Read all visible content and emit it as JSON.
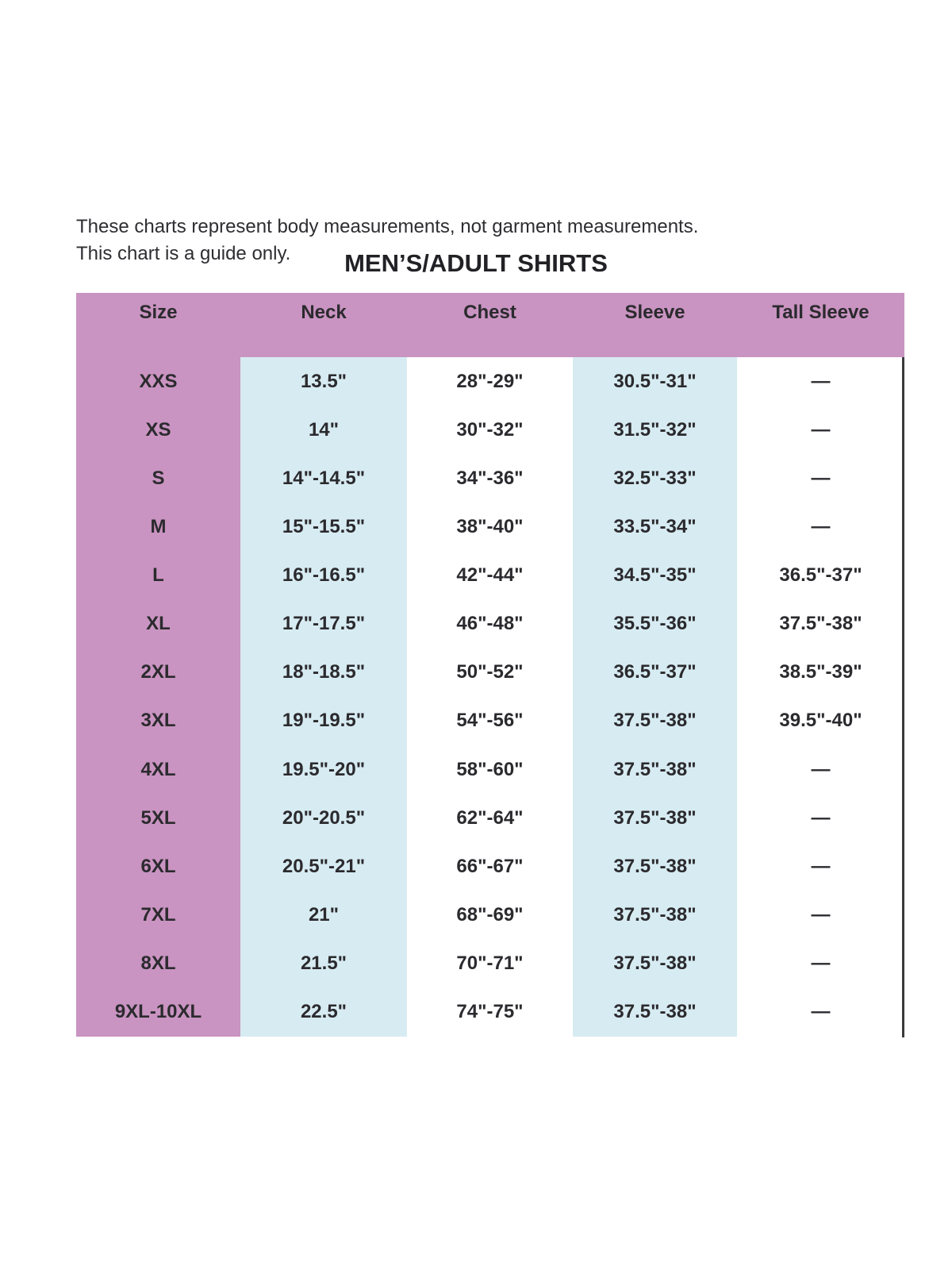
{
  "note": {
    "line1": "These charts represent body measurements, not garment measurements.",
    "line2": "This chart is a guide only."
  },
  "title": "MEN’S/ADULT SHIRTS",
  "chart_data": {
    "type": "table",
    "title": "MEN’S/ADULT SHIRTS",
    "columns": [
      "Size",
      "Neck",
      "Chest",
      "Sleeve",
      "Tall Sleeve"
    ],
    "rows": [
      [
        "XXS",
        "13.5\"",
        "28\"-29\"",
        "30.5\"-31\"",
        "—"
      ],
      [
        "XS",
        "14\"",
        "30\"-32\"",
        "31.5\"-32\"",
        "—"
      ],
      [
        "S",
        "14\"-14.5\"",
        "34\"-36\"",
        "32.5\"-33\"",
        "—"
      ],
      [
        "M",
        "15\"-15.5\"",
        "38\"-40\"",
        "33.5\"-34\"",
        "—"
      ],
      [
        "L",
        "16\"-16.5\"",
        "42\"-44\"",
        "34.5\"-35\"",
        "36.5\"-37\""
      ],
      [
        "XL",
        "17\"-17.5\"",
        "46\"-48\"",
        "35.5\"-36\"",
        "37.5\"-38\""
      ],
      [
        "2XL",
        "18\"-18.5\"",
        "50\"-52\"",
        "36.5\"-37\"",
        "38.5\"-39\""
      ],
      [
        "3XL",
        "19\"-19.5\"",
        "54\"-56\"",
        "37.5\"-38\"",
        "39.5\"-40\""
      ],
      [
        "4XL",
        "19.5\"-20\"",
        "58\"-60\"",
        "37.5\"-38\"",
        "—"
      ],
      [
        "5XL",
        "20\"-20.5\"",
        "62\"-64\"",
        "37.5\"-38\"",
        "—"
      ],
      [
        "6XL",
        "20.5\"-21\"",
        "66\"-67\"",
        "37.5\"-38\"",
        "—"
      ],
      [
        "7XL",
        "21\"",
        "68\"-69\"",
        "37.5\"-38\"",
        "—"
      ],
      [
        "8XL",
        "21.5\"",
        "70\"-71\"",
        "37.5\"-38\"",
        "—"
      ],
      [
        "9XL-10XL",
        "22.5\"",
        "74\"-75\"",
        "37.5\"-38\"",
        "—"
      ]
    ]
  },
  "colors": {
    "header_bg": "#c994c1",
    "accent_column_bg": "#d7ecf2",
    "text": "#2b2a2e",
    "right_border": "#3a393c"
  }
}
